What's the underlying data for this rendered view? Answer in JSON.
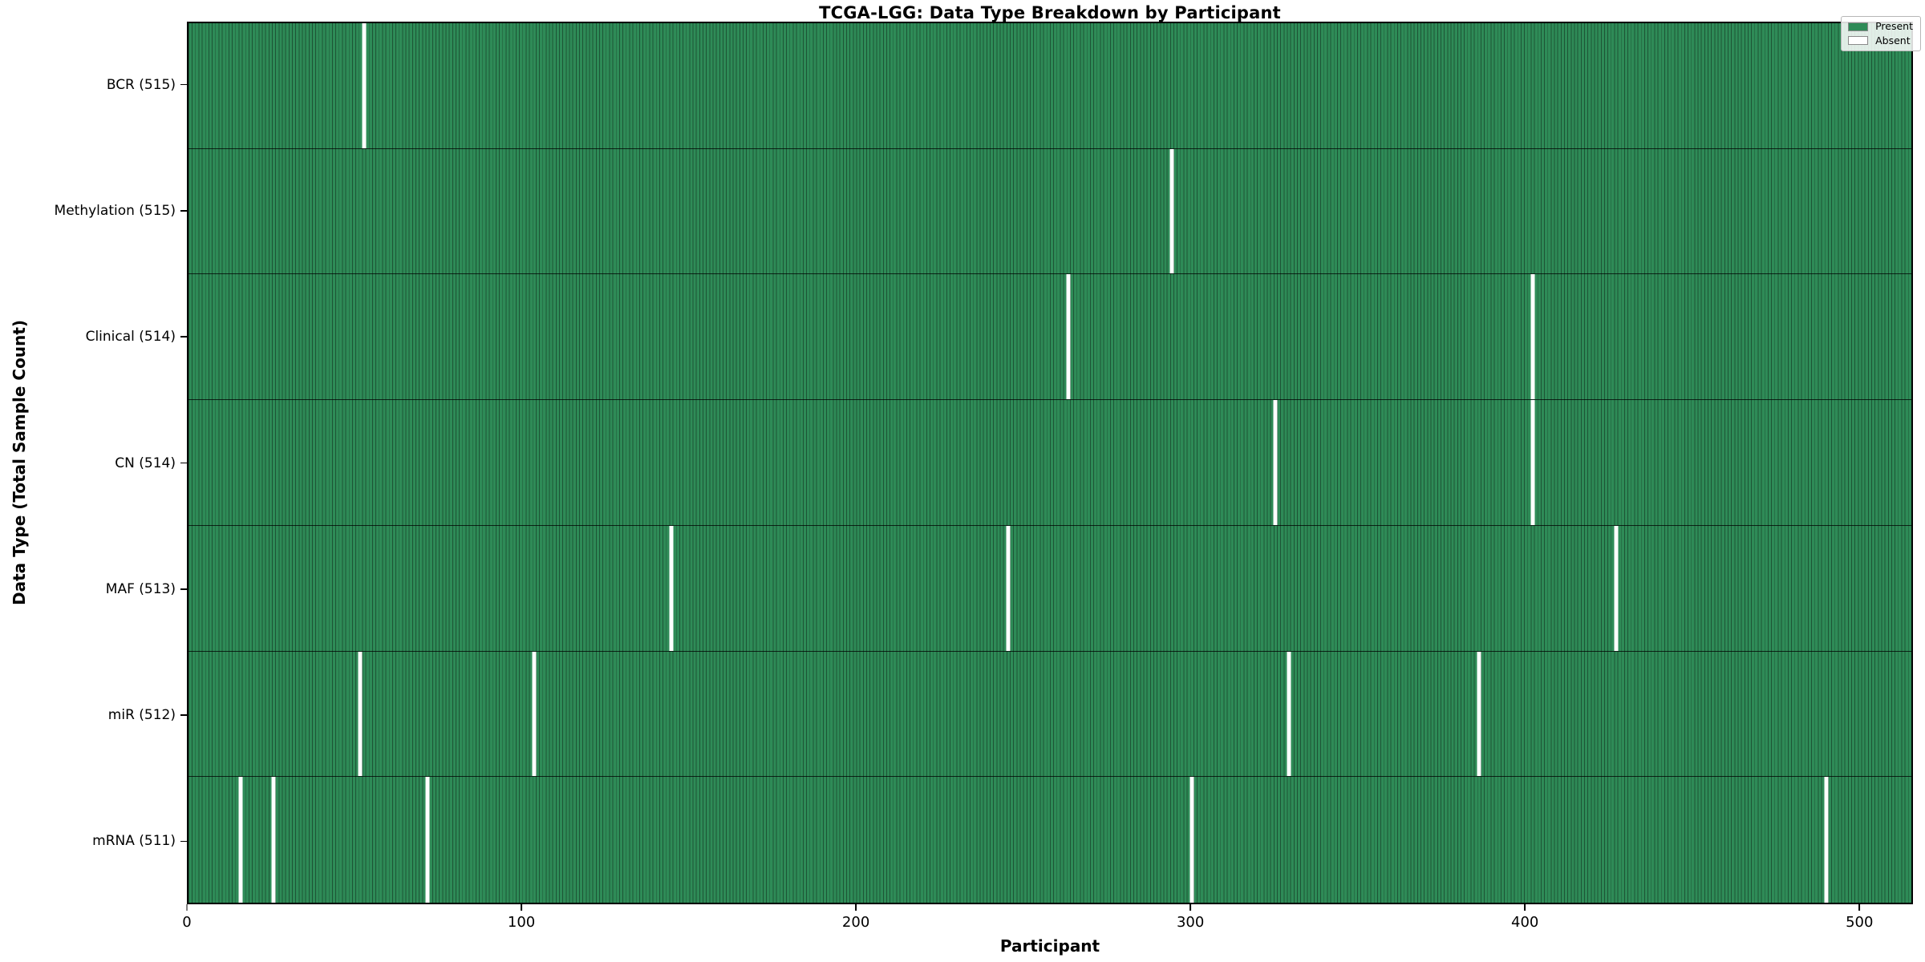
{
  "chart_data": {
    "type": "heatmap",
    "title": "TCGA-LGG: Data Type Breakdown by Participant",
    "xlabel": "Participant",
    "ylabel": "Data Type (Total Sample Count)",
    "xlim": [
      0,
      516
    ],
    "x_ticks": [
      0,
      100,
      200,
      300,
      400,
      500
    ],
    "total_participants": 516,
    "grid": false,
    "legend": {
      "position": "upper right",
      "entries": [
        {
          "name": "present",
          "label": "Present",
          "color": "#2e8b57"
        },
        {
          "name": "absent",
          "label": "Absent",
          "color": "#ffffff"
        }
      ]
    },
    "colors": {
      "present": "#2e8b57",
      "absent": "#ffffff",
      "bar_edge": "#1d5435",
      "spine": "#000000"
    },
    "rows": [
      {
        "data_type": "BCR",
        "label": "BCR (515)",
        "present_count": 515,
        "absent_participants": [
          52
        ]
      },
      {
        "data_type": "Methylation",
        "label": "Methylation (515)",
        "present_count": 515,
        "absent_participants": [
          294
        ]
      },
      {
        "data_type": "Clinical",
        "label": "Clinical (514)",
        "present_count": 514,
        "absent_participants": [
          263,
          402
        ]
      },
      {
        "data_type": "CN",
        "label": "CN (514)",
        "present_count": 514,
        "absent_participants": [
          325,
          402
        ]
      },
      {
        "data_type": "MAF",
        "label": "MAF (513)",
        "present_count": 513,
        "absent_participants": [
          144,
          245,
          427
        ]
      },
      {
        "data_type": "miR",
        "label": "miR (512)",
        "present_count": 512,
        "absent_participants": [
          51,
          103,
          329,
          386
        ]
      },
      {
        "data_type": "mRNA",
        "label": "mRNA (511)",
        "present_count": 511,
        "absent_participants": [
          15,
          25,
          71,
          300,
          490
        ]
      }
    ]
  }
}
